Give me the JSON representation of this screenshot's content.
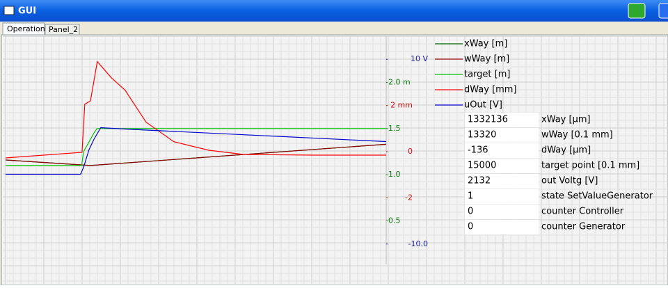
{
  "window": {
    "title": "GUI"
  },
  "tabs": [
    "Operation",
    "Panel_2"
  ],
  "chart_data": {
    "type": "line",
    "xlim": [
      0,
      100
    ],
    "ylim": [
      -12.5,
      12.5
    ],
    "yticks": [
      {
        "value": 10,
        "label": "10 V"
      },
      {
        "value": -10,
        "label": "-10.0"
      }
    ],
    "y_color": "#1a1aa0",
    "y2lim": [
      0,
      2.5
    ],
    "y2ticks": [
      {
        "value": 2,
        "label": "2.0 m"
      },
      1.5,
      {
        "value": 1,
        "label": "1.0"
      },
      0.5
    ],
    "y2_color": "#108010",
    "y3lim": [
      -5,
      5
    ],
    "y3ticks": [
      {
        "value": 2,
        "label": "2 mm"
      },
      0,
      -2
    ],
    "y3_color": "#cc1010",
    "series": [
      {
        "name": "xWay [m]",
        "color": "#006400",
        "axis": "y2",
        "x": [
          0,
          22.3,
          100
        ],
        "values": [
          1.16,
          1.1,
          1.33
        ]
      },
      {
        "name": "wWay [m]",
        "color": "#8b0000",
        "axis": "y2",
        "x": [
          0,
          22.3,
          100
        ],
        "values": [
          1.16,
          1.1,
          1.33
        ]
      },
      {
        "name": "target [m]",
        "color": "#00c800",
        "axis": "y2",
        "x": [
          0,
          20,
          20.5,
          23.2,
          24,
          100
        ],
        "values": [
          1.1,
          1.1,
          1.25,
          1.45,
          1.5,
          1.5
        ]
      },
      {
        "name": "dWay [mm]",
        "color": "#ff0000",
        "axis": "y3",
        "x": [
          0,
          20.1,
          20.8,
          22.3,
          24.1,
          27.8,
          31.4,
          36.9,
          44.2,
          53.4,
          62.5,
          80.8,
          100
        ],
        "values": [
          -0.27,
          -0.03,
          2.05,
          2.2,
          3.9,
          3.2,
          2.66,
          1.28,
          0.43,
          0.06,
          -0.12,
          -0.15,
          -0.15
        ]
      },
      {
        "name": "uOut [V]",
        "color": "#0000cc",
        "axis": "y",
        "x": [
          0,
          19.7,
          20.5,
          21.9,
          23.2,
          25,
          31.4,
          100
        ],
        "values": [
          -2.45,
          -2.45,
          -1.7,
          0.19,
          1.32,
          2.6,
          2.45,
          1.09
        ]
      }
    ]
  },
  "table": {
    "rows": [
      [
        "1332136",
        "xWay [µm]"
      ],
      [
        "13320",
        "wWay [0.1 mm]"
      ],
      [
        "-136",
        "dWay [µm]"
      ],
      [
        "15000",
        "target point [0.1 mm]"
      ],
      [
        "2132",
        "out Voltg [V]"
      ],
      [
        "1",
        "state SetValueGenerator"
      ],
      [
        "0",
        "counter Controller"
      ],
      [
        "0",
        "counter Generator"
      ]
    ]
  }
}
